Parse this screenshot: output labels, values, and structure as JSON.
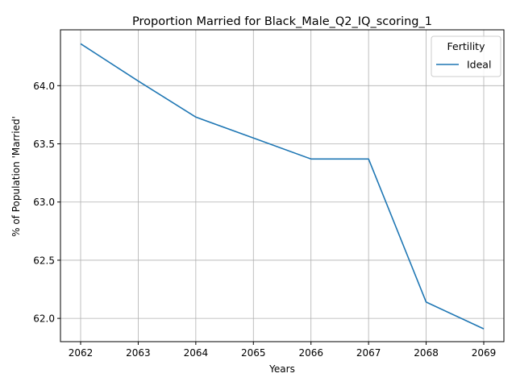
{
  "chart_data": {
    "type": "line",
    "title": "Proportion Married for Black_Male_Q2_IQ_scoring_1",
    "xlabel": "Years",
    "ylabel": "% of Population 'Married'",
    "x": [
      2062,
      2063,
      2064,
      2065,
      2066,
      2067,
      2068,
      2069
    ],
    "series": [
      {
        "name": "Ideal",
        "color": "#1f77b4",
        "values": [
          64.36,
          64.04,
          63.73,
          63.55,
          63.37,
          63.37,
          62.14,
          61.91
        ]
      }
    ],
    "xlim": [
      2061.65,
      2069.35
    ],
    "ylim": [
      61.8,
      64.48
    ],
    "xticks": [
      "2062",
      "2063",
      "2064",
      "2065",
      "2066",
      "2067",
      "2068",
      "2069"
    ],
    "yticks": [
      "62.0",
      "62.5",
      "63.0",
      "63.5",
      "64.0"
    ],
    "grid": true,
    "legend": {
      "title": "Fertility",
      "position": "top-right"
    }
  }
}
